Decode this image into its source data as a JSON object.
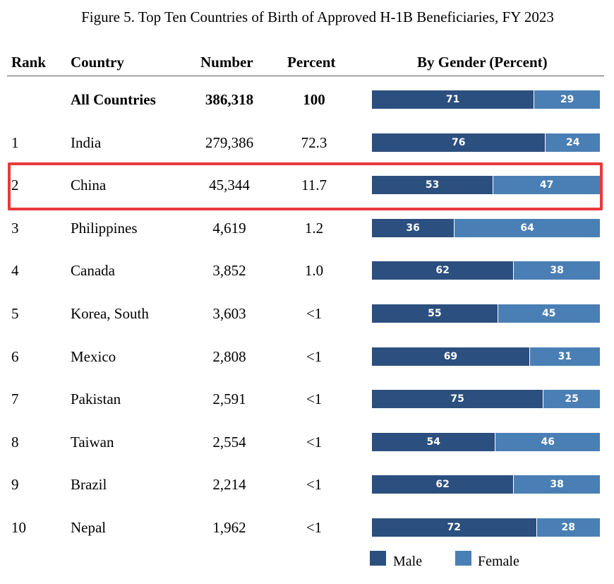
{
  "title": "Figure 5. Top Ten Countries of Birth of Approved H-1B Beneficiaries, FY 2023",
  "headers": {
    "rank": "Rank",
    "country": "Country",
    "number": "Number",
    "percent": "Percent",
    "gender": "By Gender (Percent)"
  },
  "colors": {
    "male": "#2b4f7e",
    "female": "#4a7fb5",
    "highlight": "#e8393c"
  },
  "legend": {
    "male": "Male",
    "female": "Female"
  },
  "highlighted_country": "China",
  "chart_data": {
    "type": "bar",
    "stacked": true,
    "orientation": "horizontal",
    "title": "Figure 5. Top Ten Countries of Birth of Approved H-1B Beneficiaries, FY 2023",
    "legend_position": "bottom",
    "rows": [
      {
        "rank": "",
        "country": "All Countries",
        "number": "386,318",
        "percent": "100",
        "male": 71,
        "female": 29
      },
      {
        "rank": "1",
        "country": "India",
        "number": "279,386",
        "percent": "72.3",
        "male": 76,
        "female": 24
      },
      {
        "rank": "2",
        "country": "China",
        "number": "45,344",
        "percent": "11.7",
        "male": 53,
        "female": 47
      },
      {
        "rank": "3",
        "country": "Philippines",
        "number": "4,619",
        "percent": "1.2",
        "male": 36,
        "female": 64
      },
      {
        "rank": "4",
        "country": "Canada",
        "number": "3,852",
        "percent": "1.0",
        "male": 62,
        "female": 38
      },
      {
        "rank": "5",
        "country": "Korea, South",
        "number": "3,603",
        "percent": "<1",
        "male": 55,
        "female": 45
      },
      {
        "rank": "6",
        "country": "Mexico",
        "number": "2,808",
        "percent": "<1",
        "male": 69,
        "female": 31
      },
      {
        "rank": "7",
        "country": "Pakistan",
        "number": "2,591",
        "percent": "<1",
        "male": 75,
        "female": 25
      },
      {
        "rank": "8",
        "country": "Taiwan",
        "number": "2,554",
        "percent": "<1",
        "male": 54,
        "female": 46
      },
      {
        "rank": "9",
        "country": "Brazil",
        "number": "2,214",
        "percent": "<1",
        "male": 62,
        "female": 38
      },
      {
        "rank": "10",
        "country": "Nepal",
        "number": "1,962",
        "percent": "<1",
        "male": 72,
        "female": 28
      }
    ],
    "series": [
      {
        "name": "Male"
      },
      {
        "name": "Female"
      }
    ],
    "xlim": [
      0,
      100
    ]
  }
}
